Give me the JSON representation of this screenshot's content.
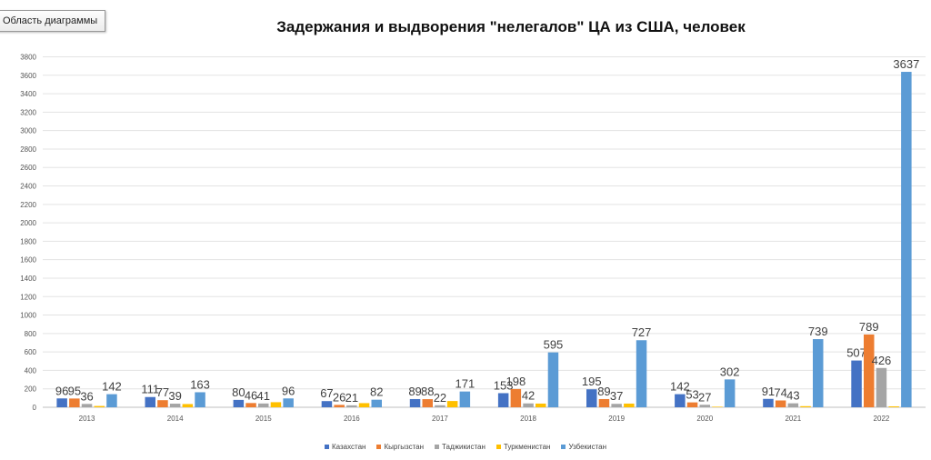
{
  "chart_area_label": "Область диаграммы",
  "chart_data": {
    "type": "bar",
    "title": "Задержания и выдворения \"нелегалов\" ЦА из США, человек",
    "xlabel": "",
    "ylabel": "",
    "ylim": [
      0,
      3800
    ],
    "ytick_step": 200,
    "grid": true,
    "legend_position": "bottom",
    "categories": [
      "2013",
      "2014",
      "2015",
      "2016",
      "2017",
      "2018",
      "2019",
      "2020",
      "2021",
      "2022"
    ],
    "series": [
      {
        "name": "Казахстан",
        "color": "#4472C4",
        "values": [
          96,
          111,
          80,
          67,
          89,
          153,
          195,
          142,
          91,
          507
        ],
        "show_labels": true
      },
      {
        "name": "Кыргызстан",
        "color": "#ED7D31",
        "values": [
          95,
          77,
          46,
          26,
          88,
          198,
          89,
          53,
          74,
          789
        ],
        "show_labels": true
      },
      {
        "name": "Таджикистан",
        "color": "#A5A5A5",
        "values": [
          36,
          39,
          41,
          21,
          22,
          42,
          37,
          27,
          43,
          426
        ],
        "show_labels": true
      },
      {
        "name": "Туркменистан",
        "color": "#FFC000",
        "values": [
          14,
          35,
          55,
          45,
          68,
          40,
          40,
          6,
          12,
          10
        ],
        "show_labels": false
      },
      {
        "name": "Узбекистан",
        "color": "#5B9BD5",
        "values": [
          142,
          163,
          96,
          82,
          171,
          595,
          727,
          302,
          739,
          3637
        ],
        "show_labels": true
      }
    ]
  }
}
